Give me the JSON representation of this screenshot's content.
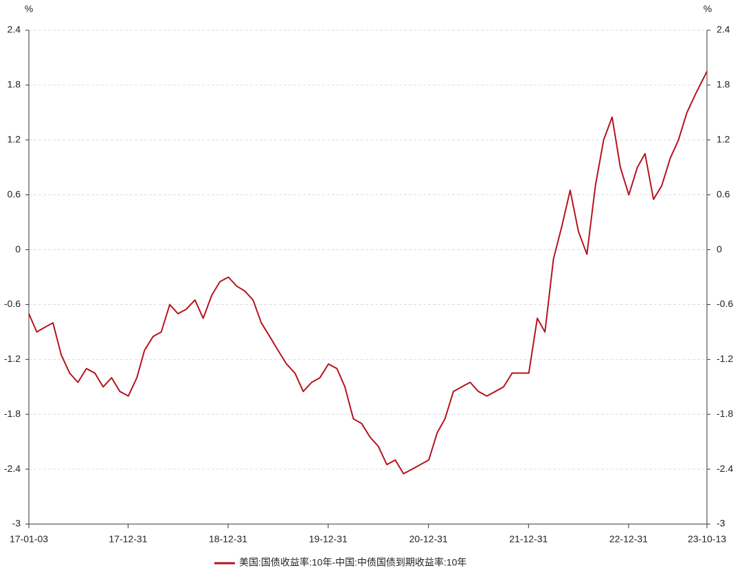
{
  "chart_data": {
    "type": "line",
    "y_unit": "%",
    "x": [
      "17-01-03",
      "17-02-01",
      "17-03-01",
      "17-04-01",
      "17-05-01",
      "17-06-01",
      "17-07-01",
      "17-08-01",
      "17-09-01",
      "17-10-01",
      "17-11-01",
      "17-12-01",
      "18-01-01",
      "18-02-01",
      "18-03-01",
      "18-04-01",
      "18-05-01",
      "18-06-01",
      "18-07-01",
      "18-08-01",
      "18-09-01",
      "18-10-01",
      "18-11-01",
      "18-12-01",
      "19-01-01",
      "19-02-01",
      "19-03-01",
      "19-04-01",
      "19-05-01",
      "19-06-01",
      "19-07-01",
      "19-08-01",
      "19-09-01",
      "19-10-01",
      "19-11-01",
      "19-12-01",
      "20-01-01",
      "20-02-01",
      "20-03-01",
      "20-04-01",
      "20-05-01",
      "20-06-01",
      "20-07-01",
      "20-08-01",
      "20-09-01",
      "20-10-01",
      "20-11-01",
      "20-12-01",
      "21-01-01",
      "21-02-01",
      "21-03-01",
      "21-04-01",
      "21-05-01",
      "21-06-01",
      "21-07-01",
      "21-08-01",
      "21-09-01",
      "21-10-01",
      "21-11-01",
      "21-12-01",
      "22-01-01",
      "22-02-01",
      "22-03-01",
      "22-04-01",
      "22-05-01",
      "22-06-01",
      "22-07-01",
      "22-08-01",
      "22-09-01",
      "22-10-01",
      "22-11-01",
      "22-12-01",
      "23-01-01",
      "23-02-01",
      "23-03-01",
      "23-04-01",
      "23-05-01",
      "23-06-01",
      "23-07-01",
      "23-08-01",
      "23-09-01",
      "23-10-13"
    ],
    "series": [
      {
        "name": "美国:国债收益率:10年-中国:中债国债到期收益率:10年",
        "color": "#b5121b",
        "values": [
          -0.7,
          -0.9,
          -0.85,
          -0.8,
          -1.15,
          -1.35,
          -1.45,
          -1.3,
          -1.35,
          -1.5,
          -1.4,
          -1.55,
          -1.6,
          -1.4,
          -1.1,
          -0.95,
          -0.9,
          -0.6,
          -0.7,
          -0.65,
          -0.55,
          -0.75,
          -0.5,
          -0.35,
          -0.3,
          -0.4,
          -0.45,
          -0.55,
          -0.8,
          -0.95,
          -1.1,
          -1.25,
          -1.35,
          -1.55,
          -1.45,
          -1.4,
          -1.25,
          -1.3,
          -1.5,
          -1.85,
          -1.9,
          -2.05,
          -2.15,
          -2.35,
          -2.3,
          -2.45,
          -2.4,
          -2.35,
          -2.3,
          -2.0,
          -1.85,
          -1.55,
          -1.5,
          -1.45,
          -1.55,
          -1.6,
          -1.55,
          -1.5,
          -1.35,
          -1.35,
          -1.35,
          -0.75,
          -0.9,
          -0.1,
          0.25,
          0.65,
          0.2,
          -0.05,
          0.7,
          1.2,
          1.45,
          0.9,
          0.6,
          0.9,
          1.05,
          0.55,
          0.7,
          1.0,
          1.2,
          1.5,
          1.7,
          1.95
        ]
      }
    ],
    "xlim": [
      "17-01-03",
      "23-10-13"
    ],
    "xticks": [
      "17-01-03",
      "17-12-31",
      "18-12-31",
      "19-12-31",
      "20-12-31",
      "21-12-31",
      "22-12-31",
      "23-10-13"
    ],
    "ylim": [
      -3,
      2.4
    ],
    "yticks": [
      2.4,
      1.8,
      1.2,
      0.6,
      0,
      -0.6,
      -1.2,
      -1.8,
      -2.4,
      -3
    ],
    "grid": true,
    "legend": "bottom"
  }
}
